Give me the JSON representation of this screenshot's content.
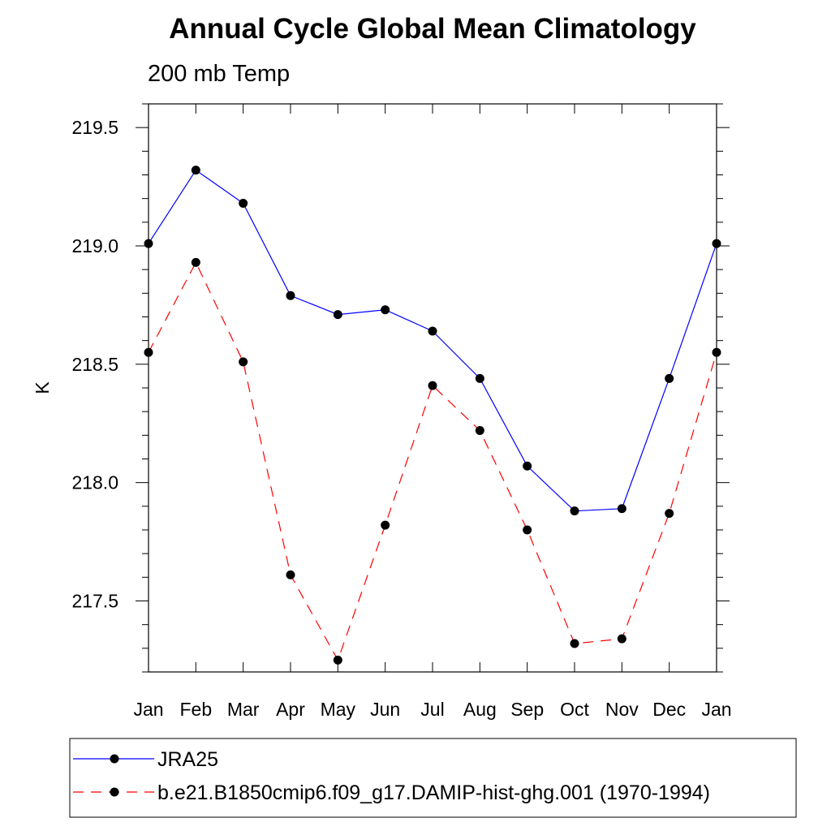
{
  "chart_data": {
    "type": "line",
    "title": "Annual Cycle Global Mean Climatology",
    "subtitle": "200 mb Temp",
    "xlabel": "",
    "ylabel": "K",
    "categories": [
      "Jan",
      "Feb",
      "Mar",
      "Apr",
      "May",
      "Jun",
      "Jul",
      "Aug",
      "Sep",
      "Oct",
      "Nov",
      "Dec",
      "Jan"
    ],
    "ylim": [
      217.2,
      219.6
    ],
    "yticks": [
      "219.5",
      "219.0",
      "218.5",
      "218.0",
      "217.5"
    ],
    "grid": false,
    "legend_position": "bottom",
    "series": [
      {
        "name": "JRA25",
        "color": "#0000ff",
        "style": "solid",
        "marker": "filled-circle",
        "values": [
          219.01,
          219.32,
          219.18,
          218.79,
          218.71,
          218.73,
          218.64,
          218.44,
          218.07,
          217.88,
          217.89,
          218.44,
          219.01
        ]
      },
      {
        "name": "b.e21.B1850cmip6.f09_g17.DAMIP-hist-ghg.001 (1970-1994)",
        "color": "#ff0000",
        "style": "dashed",
        "marker": "filled-circle",
        "values": [
          218.55,
          218.93,
          218.51,
          217.61,
          217.25,
          217.82,
          218.41,
          218.22,
          217.8,
          217.32,
          217.34,
          217.87,
          218.55
        ]
      }
    ]
  }
}
